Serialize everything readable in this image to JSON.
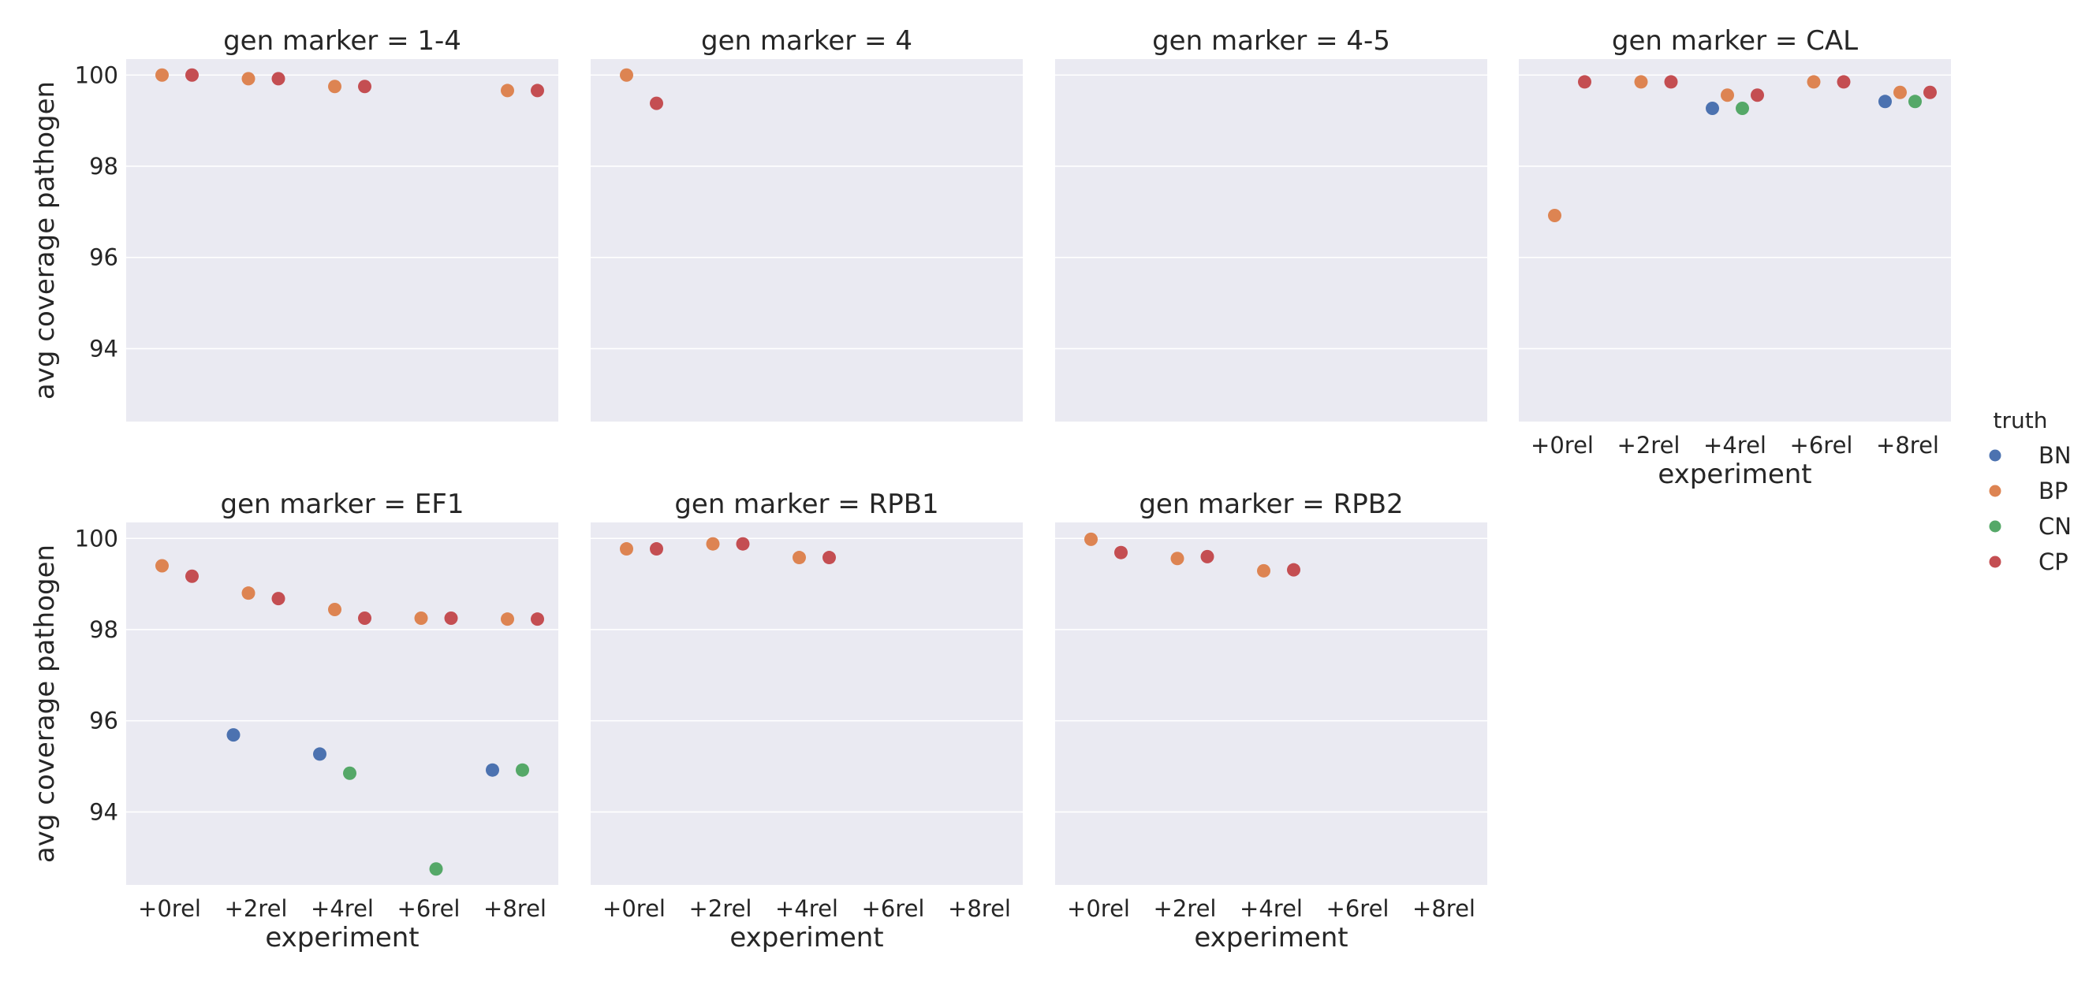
{
  "chart_data": {
    "type": "scatter",
    "layout": "facet-grid",
    "facet_variable": "gen marker",
    "ylabel": "avg coverage pathogen",
    "xlabel": "experiment",
    "categories": [
      "+0rel",
      "+2rel",
      "+4rel",
      "+6rel",
      "+8rel"
    ],
    "yticks": [
      94,
      96,
      98,
      100
    ],
    "ylim": [
      92.4,
      100.35
    ],
    "grid": true,
    "hue": {
      "name": "truth",
      "levels": [
        "BN",
        "BP",
        "CN",
        "CP"
      ],
      "colors": {
        "BN": "#4c72b0",
        "BP": "#dd8452",
        "CN": "#55a868",
        "CP": "#c44e52"
      }
    },
    "legend": {
      "title": "truth",
      "placement": "right"
    },
    "panels": [
      {
        "title": "gen marker = 1-4",
        "points": [
          {
            "x": "+0rel",
            "truth": "CP",
            "y": 100.0
          },
          {
            "x": "+0rel",
            "truth": "BP",
            "y": 100.0
          },
          {
            "x": "+2rel",
            "truth": "CP",
            "y": 99.92
          },
          {
            "x": "+2rel",
            "truth": "BP",
            "y": 99.92
          },
          {
            "x": "+4rel",
            "truth": "CP",
            "y": 99.75
          },
          {
            "x": "+4rel",
            "truth": "BP",
            "y": 99.75
          },
          {
            "x": "+8rel",
            "truth": "CP",
            "y": 99.66
          },
          {
            "x": "+8rel",
            "truth": "BP",
            "y": 99.66
          }
        ]
      },
      {
        "title": "gen marker = 4",
        "points": [
          {
            "x": "+0rel",
            "truth": "BP",
            "y": 100.0
          },
          {
            "x": "+0rel",
            "truth": "CP",
            "y": 99.38
          }
        ]
      },
      {
        "title": "gen marker = 4-5",
        "points": []
      },
      {
        "title": "gen marker = CAL",
        "points": [
          {
            "x": "+0rel",
            "truth": "CP",
            "y": 99.85
          },
          {
            "x": "+0rel",
            "truth": "BP",
            "y": 96.92
          },
          {
            "x": "+2rel",
            "truth": "CP",
            "y": 99.85
          },
          {
            "x": "+2rel",
            "truth": "BP",
            "y": 99.85
          },
          {
            "x": "+4rel",
            "truth": "CP",
            "y": 99.56
          },
          {
            "x": "+4rel",
            "truth": "BP",
            "y": 99.56
          },
          {
            "x": "+4rel",
            "truth": "CN",
            "y": 99.27
          },
          {
            "x": "+4rel",
            "truth": "BN",
            "y": 99.27
          },
          {
            "x": "+6rel",
            "truth": "CP",
            "y": 99.85
          },
          {
            "x": "+6rel",
            "truth": "BP",
            "y": 99.85
          },
          {
            "x": "+8rel",
            "truth": "CP",
            "y": 99.62
          },
          {
            "x": "+8rel",
            "truth": "BP",
            "y": 99.62
          },
          {
            "x": "+8rel",
            "truth": "CN",
            "y": 99.42
          },
          {
            "x": "+8rel",
            "truth": "BN",
            "y": 99.42
          }
        ]
      },
      {
        "title": "gen marker = EF1",
        "points": [
          {
            "x": "+0rel",
            "truth": "BP",
            "y": 99.4
          },
          {
            "x": "+0rel",
            "truth": "CP",
            "y": 99.17
          },
          {
            "x": "+2rel",
            "truth": "BP",
            "y": 98.8
          },
          {
            "x": "+2rel",
            "truth": "CP",
            "y": 98.68
          },
          {
            "x": "+2rel",
            "truth": "BN",
            "y": 95.69
          },
          {
            "x": "+4rel",
            "truth": "BP",
            "y": 98.44
          },
          {
            "x": "+4rel",
            "truth": "CP",
            "y": 98.25
          },
          {
            "x": "+4rel",
            "truth": "BN",
            "y": 95.27
          },
          {
            "x": "+4rel",
            "truth": "CN",
            "y": 94.85
          },
          {
            "x": "+6rel",
            "truth": "CP",
            "y": 98.25
          },
          {
            "x": "+6rel",
            "truth": "BP",
            "y": 98.25
          },
          {
            "x": "+6rel",
            "truth": "CN",
            "y": 92.75
          },
          {
            "x": "+8rel",
            "truth": "CP",
            "y": 98.23
          },
          {
            "x": "+8rel",
            "truth": "BP",
            "y": 98.23
          },
          {
            "x": "+8rel",
            "truth": "CN",
            "y": 94.92
          },
          {
            "x": "+8rel",
            "truth": "BN",
            "y": 94.92
          }
        ]
      },
      {
        "title": "gen marker = RPB1",
        "points": [
          {
            "x": "+0rel",
            "truth": "CP",
            "y": 99.77
          },
          {
            "x": "+0rel",
            "truth": "BP",
            "y": 99.77
          },
          {
            "x": "+2rel",
            "truth": "CP",
            "y": 99.88
          },
          {
            "x": "+2rel",
            "truth": "BP",
            "y": 99.88
          },
          {
            "x": "+4rel",
            "truth": "CP",
            "y": 99.58
          },
          {
            "x": "+4rel",
            "truth": "BP",
            "y": 99.58
          }
        ]
      },
      {
        "title": "gen marker = RPB2",
        "points": [
          {
            "x": "+0rel",
            "truth": "BP",
            "y": 99.98
          },
          {
            "x": "+0rel",
            "truth": "CP",
            "y": 99.69
          },
          {
            "x": "+2rel",
            "truth": "CP",
            "y": 99.6
          },
          {
            "x": "+2rel",
            "truth": "BP",
            "y": 99.56
          },
          {
            "x": "+4rel",
            "truth": "CP",
            "y": 99.31
          },
          {
            "x": "+4rel",
            "truth": "BP",
            "y": 99.29
          }
        ]
      }
    ]
  }
}
